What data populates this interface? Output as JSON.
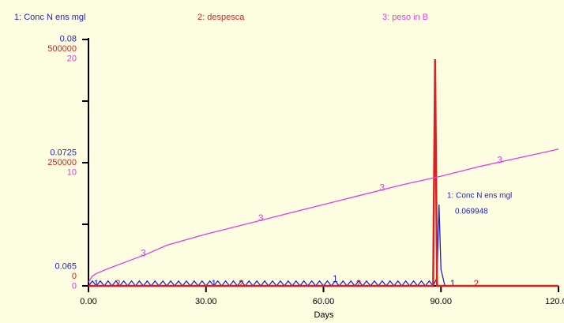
{
  "chart_data": {
    "type": "line",
    "x_label": "Days",
    "xlim": [
      0,
      120
    ],
    "xticks": [
      {
        "value": 0,
        "label": "0.00"
      },
      {
        "value": 30,
        "label": "30.00"
      },
      {
        "value": 60,
        "label": "60.00"
      },
      {
        "value": 90,
        "label": "90.00"
      },
      {
        "value": 120,
        "label": "120.00"
      }
    ],
    "annotations": [
      "1: Conc N ens mgl",
      "0.069948"
    ],
    "series": [
      {
        "name": "1: Conc N ens mgl",
        "marker": "1",
        "color": "#2020d0",
        "ylim": [
          0.065,
          0.08
        ],
        "yticks": [
          0.065,
          0.0725,
          0.08
        ],
        "x": [
          0,
          1,
          2,
          3,
          4,
          5,
          6,
          7,
          8,
          9,
          10,
          11,
          12,
          13,
          14,
          15,
          16,
          17,
          18,
          19,
          20,
          21,
          22,
          23,
          24,
          25,
          26,
          27,
          28,
          29,
          30,
          31,
          32,
          33,
          34,
          35,
          36,
          37,
          38,
          39,
          40,
          41,
          42,
          43,
          44,
          45,
          46,
          47,
          48,
          49,
          50,
          51,
          52,
          53,
          54,
          55,
          56,
          57,
          58,
          59,
          60,
          61,
          62,
          63,
          64,
          65,
          66,
          67,
          68,
          69,
          70,
          71,
          72,
          73,
          74,
          75,
          76,
          77,
          78,
          79,
          80,
          81,
          82,
          83,
          84,
          85,
          86,
          87,
          88,
          89,
          89.5,
          90,
          91,
          120
        ],
        "values": [
          0.065,
          0.0653,
          0.065,
          0.0653,
          0.065,
          0.0653,
          0.065,
          0.0653,
          0.065,
          0.0653,
          0.065,
          0.0653,
          0.065,
          0.0653,
          0.065,
          0.0653,
          0.065,
          0.0653,
          0.065,
          0.0653,
          0.065,
          0.0653,
          0.065,
          0.0653,
          0.065,
          0.0653,
          0.065,
          0.0653,
          0.065,
          0.0653,
          0.065,
          0.0653,
          0.065,
          0.0653,
          0.065,
          0.0653,
          0.065,
          0.0653,
          0.065,
          0.0653,
          0.065,
          0.0653,
          0.065,
          0.0653,
          0.065,
          0.0653,
          0.065,
          0.0653,
          0.065,
          0.0653,
          0.065,
          0.0653,
          0.065,
          0.0653,
          0.065,
          0.0653,
          0.065,
          0.0653,
          0.065,
          0.0653,
          0.065,
          0.0653,
          0.065,
          0.0653,
          0.065,
          0.0653,
          0.065,
          0.0653,
          0.065,
          0.0653,
          0.065,
          0.0653,
          0.065,
          0.0653,
          0.065,
          0.0653,
          0.065,
          0.0653,
          0.065,
          0.0653,
          0.065,
          0.0653,
          0.065,
          0.0653,
          0.065,
          0.0653,
          0.065,
          0.0653,
          0.065,
          0.0655,
          0.069948,
          0.066,
          0.065,
          0.065
        ]
      },
      {
        "name": "2: despesca",
        "marker": "2",
        "color": "#e02020",
        "ylim": [
          0,
          500000
        ],
        "yticks": [
          0,
          250000,
          500000
        ],
        "x": [
          0,
          87,
          88,
          88.5,
          89,
          90,
          120
        ],
        "values": [
          0,
          0,
          0,
          460000,
          0,
          0,
          0
        ]
      },
      {
        "name": "3: peso in B",
        "marker": "3",
        "color": "#e040e0",
        "ylim": [
          0,
          20
        ],
        "yticks": [
          0,
          10,
          20
        ],
        "x": [
          0,
          1,
          2,
          5,
          10,
          15,
          20,
          30,
          40,
          50,
          60,
          70,
          80,
          90,
          100,
          110,
          120
        ],
        "values": [
          0.3,
          0.8,
          1.0,
          1.4,
          2.0,
          2.6,
          3.3,
          4.2,
          5.0,
          5.8,
          6.6,
          7.4,
          8.2,
          8.9,
          9.7,
          10.4,
          11.1
        ]
      }
    ]
  }
}
